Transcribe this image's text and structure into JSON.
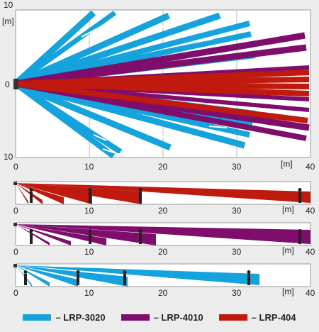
{
  "colors": {
    "LRP-3020": "#14a3dc",
    "LRP-4010": "#7e0d6c",
    "LRP-404": "#c0190e",
    "grid": "#bdbdbd",
    "person": "#222222"
  },
  "main_plot": {
    "y_top_label": "10",
    "y_unit_label": "[m]",
    "y_zero_label": "0",
    "y_bottom_label": "10",
    "x_ticks": [
      "0",
      "10",
      "20",
      "30",
      "40"
    ],
    "x_unit_label": "[m]"
  },
  "strips": [
    {
      "model": "LRP-404",
      "x_ticks": [
        "0",
        "10",
        "20",
        "30",
        "40"
      ],
      "x_unit_label": "[m]"
    },
    {
      "model": "LRP-4010",
      "x_ticks": [
        "0",
        "10",
        "20",
        "30",
        "40"
      ],
      "x_unit_label": "[m]"
    },
    {
      "model": "LRP-3020",
      "x_ticks": [
        "0",
        "10",
        "20",
        "30",
        "40"
      ],
      "x_unit_label": "[m]"
    }
  ],
  "legend": [
    {
      "label": "– LRP-3020",
      "icon": "blue-swatch"
    },
    {
      "label": "– LRP-4010",
      "icon": "purple-swatch"
    },
    {
      "label": "– LRP-404",
      "icon": "red-swatch"
    }
  ]
}
